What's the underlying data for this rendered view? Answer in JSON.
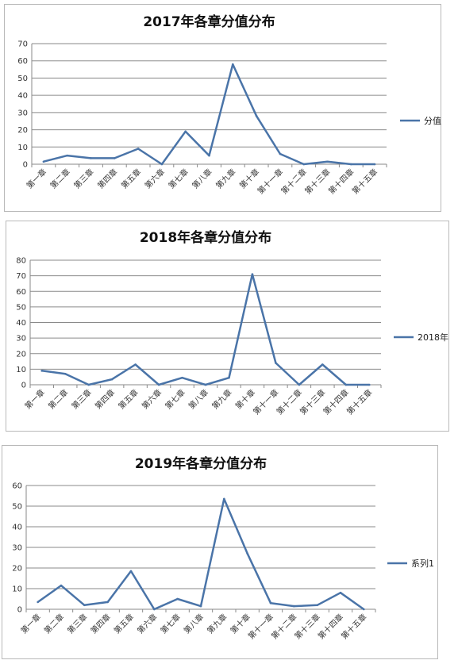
{
  "chart_data": [
    {
      "type": "line",
      "title": "2017年各章分值分布",
      "categories": [
        "第一章",
        "第二章",
        "第三章",
        "第四章",
        "第五章",
        "第六章",
        "第七章",
        "第八章",
        "第九章",
        "第十章",
        "第十一章",
        "第十二章",
        "第十三章",
        "第十四章",
        "第十五章"
      ],
      "series": [
        {
          "name": "分值",
          "values": [
            1.5,
            5,
            3.5,
            3.5,
            9,
            0,
            19,
            5,
            58,
            28,
            6,
            0,
            1.5,
            0,
            0
          ]
        }
      ],
      "ylim": [
        0,
        70
      ],
      "yticks": [
        0,
        10,
        20,
        30,
        40,
        50,
        60,
        70
      ],
      "grid": true,
      "legend": "right",
      "line_color": "#4a74a8"
    },
    {
      "type": "line",
      "title": "2018年各章分值分布",
      "categories": [
        "第一章",
        "第二章",
        "第三章",
        "第四章",
        "第五章",
        "第六章",
        "第七章",
        "第八章",
        "第九章",
        "第十章",
        "第十一章",
        "第十二章",
        "第十三章",
        "第十四章",
        "第十五章"
      ],
      "series": [
        {
          "name": "2018年",
          "values": [
            9,
            7,
            0,
            3.5,
            13,
            0,
            4.5,
            0,
            4.5,
            71,
            14,
            0,
            13,
            0,
            0
          ]
        }
      ],
      "ylim": [
        0,
        80
      ],
      "yticks": [
        0,
        10,
        20,
        30,
        40,
        50,
        60,
        70,
        80
      ],
      "grid": true,
      "legend": "right",
      "line_color": "#4a74a8"
    },
    {
      "type": "line",
      "title": "2019年各章分值分布",
      "categories": [
        "第一章",
        "第二章",
        "第三章",
        "第四章",
        "第五章",
        "第六章",
        "第七章",
        "第八章",
        "第九章",
        "第十章",
        "第十一章",
        "第十二章",
        "第十三章",
        "第十四章",
        "第十五章"
      ],
      "series": [
        {
          "name": "系列1",
          "values": [
            3.5,
            11.5,
            2,
            3.5,
            18.5,
            0,
            5,
            1.5,
            53.5,
            27,
            3,
            1.5,
            2,
            8,
            0
          ]
        }
      ],
      "ylim": [
        0,
        60
      ],
      "yticks": [
        0,
        10,
        20,
        30,
        40,
        50,
        60
      ],
      "grid": true,
      "legend": "right",
      "line_color": "#4a74a8"
    }
  ]
}
